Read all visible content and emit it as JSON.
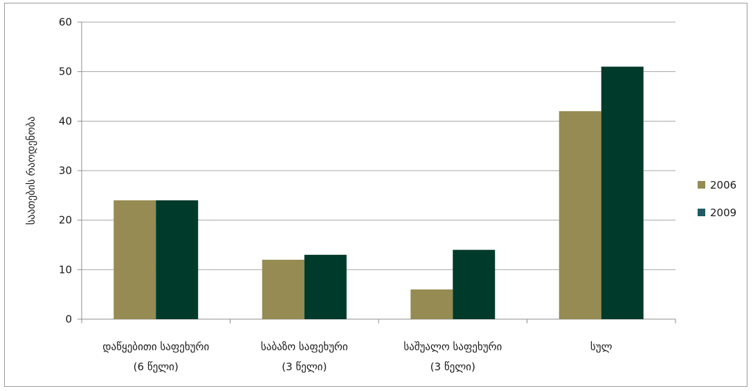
{
  "chart_data": {
    "type": "bar",
    "ylabel": "საათების რაოდენობა",
    "xlabel": "",
    "title": "",
    "ylim": [
      0,
      60
    ],
    "yticks": [
      "0",
      "10",
      "20",
      "30",
      "40",
      "50",
      "60"
    ],
    "categories": [
      [
        "დაწყებითი საფეხური",
        "(6 წელი)"
      ],
      [
        "საბაზო საფეხური",
        "(3 წელი)"
      ],
      [
        "საშუალო საფეხური",
        "(3 წელი)"
      ],
      [
        "სულ"
      ]
    ],
    "series": [
      {
        "name": "2006",
        "color": "#958b53",
        "values": [
          24,
          12,
          6,
          42
        ]
      },
      {
        "name": "2009",
        "color": "#003a2a",
        "values": [
          24,
          13,
          14,
          51
        ]
      }
    ],
    "legend_position": "right",
    "grid": true,
    "legend_marker_colors": [
      "#958b53",
      "#1f5a66"
    ]
  }
}
